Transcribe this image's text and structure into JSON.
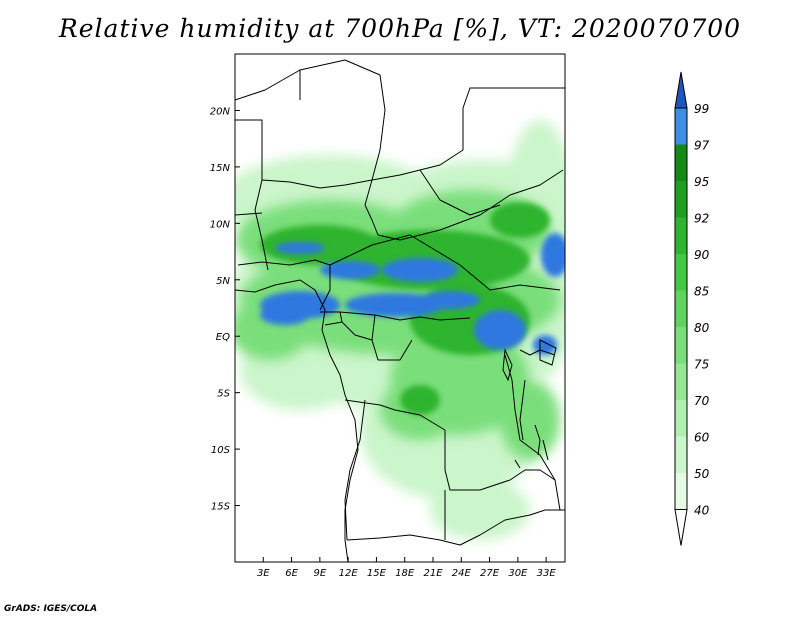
{
  "title": "Relative humidity at 700hPa [%], VT: 2020070700",
  "credit": "GrADS: IGES/COLA",
  "map": {
    "lon_range": [
      0,
      35
    ],
    "lat_range": [
      -20,
      25
    ],
    "lat_labels": [
      "20N",
      "15N",
      "10N",
      "5N",
      "EQ",
      "5S",
      "10S",
      "15S"
    ],
    "lat_values": [
      20,
      15,
      10,
      5,
      0,
      -5,
      -10,
      -15
    ],
    "lon_labels": [
      "3E",
      "6E",
      "9E",
      "12E",
      "15E",
      "18E",
      "21E",
      "24E",
      "27E",
      "30E",
      "33E"
    ],
    "lon_values": [
      3,
      6,
      9,
      12,
      15,
      18,
      21,
      24,
      27,
      30,
      33
    ]
  },
  "colorbar": {
    "levels": [
      "40",
      "50",
      "60",
      "70",
      "75",
      "80",
      "85",
      "90",
      "92",
      "95",
      "97",
      "99"
    ],
    "colors": [
      "#e6fbe6",
      "#cbf5cb",
      "#b1efb1",
      "#95e795",
      "#7ade7a",
      "#5ed45e",
      "#44c844",
      "#2fb42f",
      "#1f9f1f",
      "#138a13",
      "#3d8ee6",
      "#2a6fd4",
      "#1f57b8"
    ],
    "under_color": "#ffffff"
  },
  "colors": {
    "land_outline": "#000000",
    "rain_blue": "#2f78e0",
    "green_light": "#cbf5cb",
    "green_mid": "#7ade7a",
    "green_dark": "#2fb42f"
  }
}
